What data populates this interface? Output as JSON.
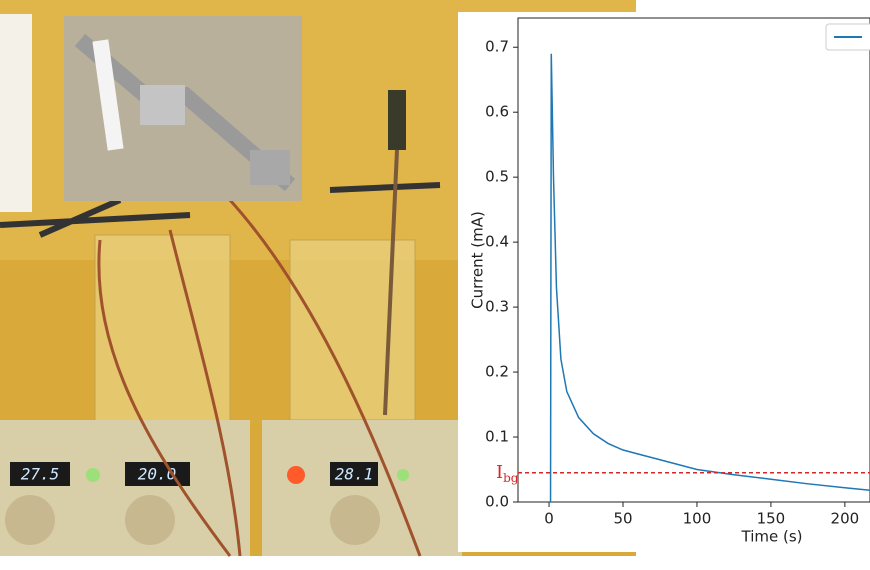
{
  "chart_data": {
    "type": "line",
    "x_label": "Time (s)",
    "y_label": "Current (mA)",
    "x": [
      0,
      1,
      1.5,
      3,
      5,
      8,
      12,
      20,
      30,
      40,
      50,
      75,
      100,
      125,
      150,
      175,
      200,
      217
    ],
    "series": [
      {
        "color": "#1f77b4",
        "values": [
          0,
          0,
          0.69,
          0.5,
          0.33,
          0.22,
          0.17,
          0.13,
          0.105,
          0.09,
          0.08,
          0.065,
          0.05,
          0.042,
          0.035,
          0.028,
          0.022,
          0.018
        ]
      }
    ],
    "xlim": [
      -21,
      217
    ],
    "ylim": [
      0,
      0.745
    ],
    "xticks": [
      0,
      50,
      100,
      150,
      200
    ],
    "yticks": [
      {
        "value": 0,
        "label": "0.0"
      },
      0.1,
      0.2,
      0.3,
      0.4,
      0.5,
      0.6,
      0.7
    ],
    "annotation": {
      "text": "I",
      "subscript": "bg",
      "value": 0.045,
      "color": "#d62728"
    },
    "legend": "upper right"
  },
  "photo": {
    "displays": [
      "27.5",
      "20.0",
      "28.1"
    ]
  }
}
